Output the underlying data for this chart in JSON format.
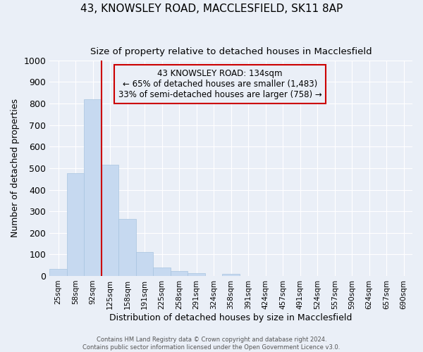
{
  "title": "43, KNOWSLEY ROAD, MACCLESFIELD, SK11 8AP",
  "subtitle": "Size of property relative to detached houses in Macclesfield",
  "xlabel": "Distribution of detached houses by size in Macclesfield",
  "ylabel": "Number of detached properties",
  "bar_labels": [
    "25sqm",
    "58sqm",
    "92sqm",
    "125sqm",
    "158sqm",
    "191sqm",
    "225sqm",
    "258sqm",
    "291sqm",
    "324sqm",
    "358sqm",
    "391sqm",
    "424sqm",
    "457sqm",
    "491sqm",
    "524sqm",
    "557sqm",
    "590sqm",
    "624sqm",
    "657sqm",
    "690sqm"
  ],
  "bar_values": [
    33,
    478,
    820,
    515,
    265,
    110,
    40,
    22,
    12,
    0,
    10,
    0,
    0,
    0,
    0,
    0,
    0,
    0,
    0,
    0,
    0
  ],
  "property_line_x": 2.5,
  "annotation_line1": "43 KNOWSLEY ROAD: 134sqm",
  "annotation_line2": "← 65% of detached houses are smaller (1,483)",
  "annotation_line3": "33% of semi-detached houses are larger (758) →",
  "bar_color": "#c6d9f0",
  "bar_edge_color": "#a8c4e0",
  "line_color": "#cc0000",
  "box_edge_color": "#cc0000",
  "bg_color": "#eaeff7",
  "grid_color": "#ffffff",
  "ylim": [
    0,
    1000
  ],
  "yticks": [
    0,
    100,
    200,
    300,
    400,
    500,
    600,
    700,
    800,
    900,
    1000
  ],
  "footer1": "Contains HM Land Registry data © Crown copyright and database right 2024.",
  "footer2": "Contains public sector information licensed under the Open Government Licence v3.0."
}
